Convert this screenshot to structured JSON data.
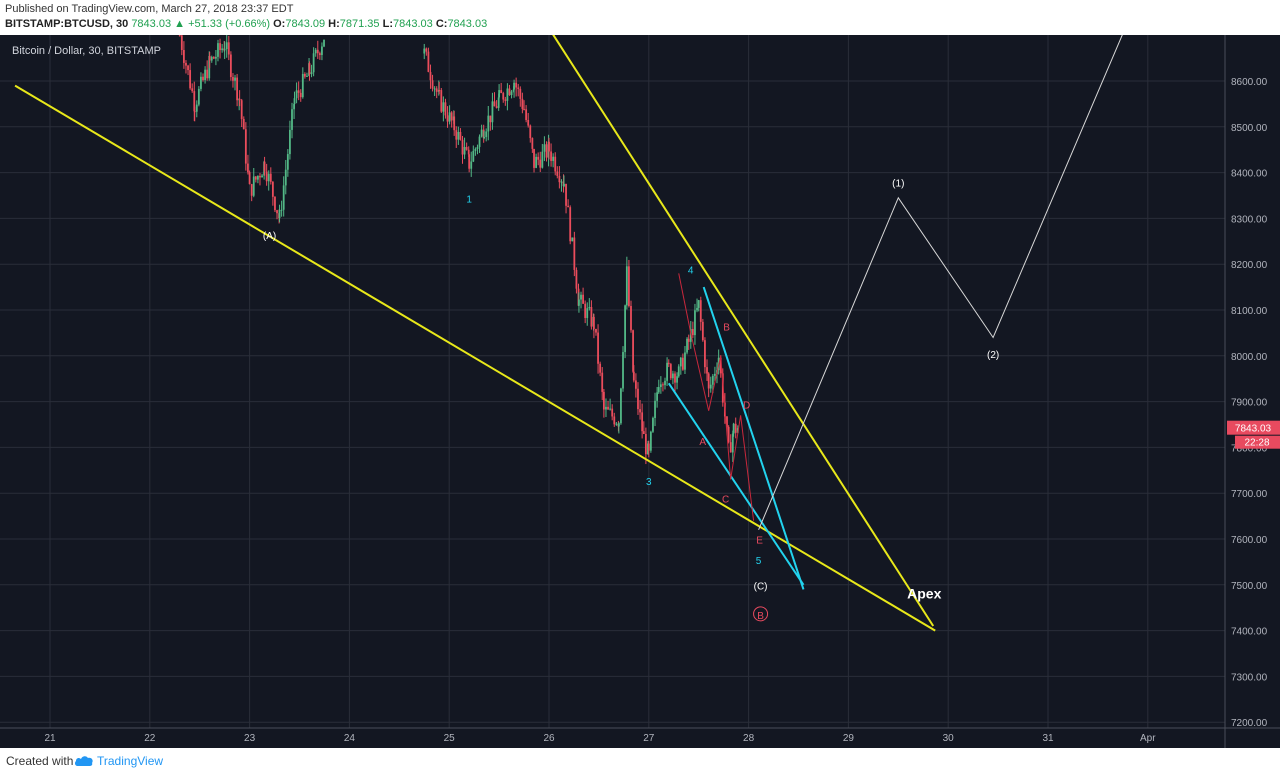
{
  "header": {
    "published": "Published on TradingView.com, March 27, 2018 23:37 EDT",
    "symbol": "BITSTAMP:BTCUSD, 30",
    "last": "7843.03",
    "change": "+51.33 (+0.66%)",
    "open_label": "O:",
    "open": "7843.09",
    "high_label": "H:",
    "high": "7871.35",
    "low_label": "L:",
    "low": "7843.03",
    "close_label": "C:",
    "close": "7843.03"
  },
  "chart_title": "Bitcoin / Dollar, 30, BITSTAMP",
  "footer": {
    "created_with": "Created with",
    "brand": "TradingView"
  },
  "colors": {
    "background": "#131722",
    "grid": "#2a2e39",
    "up": "#53b987",
    "down": "#eb4d5c",
    "trendline": "#e8e81a",
    "wedge": "#22d3ee",
    "projection": "#d8d8d8",
    "price_tag": "#e84a5f"
  },
  "chart_data": {
    "type": "candlestick",
    "title": "Bitcoin / Dollar, 30, BITSTAMP",
    "y_ticks": [
      8600,
      8500,
      8400,
      8300,
      8200,
      8100,
      8000,
      7900,
      7800,
      7700,
      7600,
      7500,
      7400,
      7300,
      7200
    ],
    "y_tick_labels": [
      "8600.00",
      "8500.00",
      "8400.00",
      "8300.00",
      "8200.00",
      "8100.00",
      "8000.00",
      "7900.00",
      "7800.00",
      "7700.00",
      "7600.00",
      "7500.00",
      "7400.00",
      "7300.00",
      "7200.00"
    ],
    "x_ticks": [
      21,
      22,
      23,
      24,
      25,
      26,
      27,
      28,
      29,
      30,
      31,
      32
    ],
    "x_tick_labels": [
      "21",
      "22",
      "23",
      "24",
      "25",
      "26",
      "27",
      "28",
      "29",
      "30",
      "31",
      "Apr"
    ],
    "last_price": "7843.03",
    "countdown": "22:28",
    "close_path": [
      [
        22.3,
        8700
      ],
      [
        22.45,
        8550
      ],
      [
        22.6,
        8640
      ],
      [
        22.75,
        8680
      ],
      [
        22.9,
        8560
      ],
      [
        23.0,
        8360
      ],
      [
        23.15,
        8420
      ],
      [
        23.3,
        8300
      ],
      [
        23.45,
        8560
      ],
      [
        23.6,
        8620
      ],
      [
        23.75,
        8700
      ],
      [
        24.75,
        8660
      ],
      [
        24.9,
        8560
      ],
      [
        25.05,
        8500
      ],
      [
        25.2,
        8420
      ],
      [
        25.35,
        8500
      ],
      [
        25.5,
        8560
      ],
      [
        25.65,
        8600
      ],
      [
        25.75,
        8540
      ],
      [
        25.85,
        8420
      ],
      [
        26.0,
        8450
      ],
      [
        26.15,
        8380
      ],
      [
        26.3,
        8120
      ],
      [
        26.45,
        8070
      ],
      [
        26.55,
        7880
      ],
      [
        26.7,
        7860
      ],
      [
        26.78,
        8180
      ],
      [
        26.85,
        7940
      ],
      [
        26.95,
        7820
      ],
      [
        27.0,
        7780
      ],
      [
        27.1,
        7950
      ],
      [
        27.2,
        7970
      ],
      [
        27.3,
        7960
      ],
      [
        27.4,
        8030
      ],
      [
        27.5,
        8110
      ],
      [
        27.6,
        7920
      ],
      [
        27.7,
        8000
      ],
      [
        27.8,
        7790
      ],
      [
        27.85,
        7840
      ],
      [
        27.9,
        7843.03
      ]
    ],
    "annotations": {
      "A_major": "(A)",
      "wave1": "1",
      "wave3": "3",
      "wave4": "4",
      "wave5": "5",
      "sub_A": "A",
      "sub_B": "B",
      "sub_C": "C",
      "sub_D": "D",
      "sub_E": "E",
      "C_major": "(C)",
      "B_circle": "B",
      "proj1": "(1)",
      "proj2": "(2)",
      "apex": "Apex"
    },
    "projection_path": [
      [
        28.1,
        7620
      ],
      [
        29.5,
        8345
      ],
      [
        30.45,
        8040
      ],
      [
        31.9,
        8780
      ]
    ],
    "upper_trendline": [
      [
        25.75,
        8800
      ],
      [
        29.85,
        7410
      ]
    ],
    "lower_trendline": [
      [
        20.65,
        8590
      ],
      [
        29.87,
        7400
      ]
    ],
    "cyan_upper": [
      [
        27.55,
        8150
      ],
      [
        28.55,
        7490
      ]
    ],
    "cyan_lower": [
      [
        27.2,
        7940
      ],
      [
        28.55,
        7500
      ]
    ]
  }
}
